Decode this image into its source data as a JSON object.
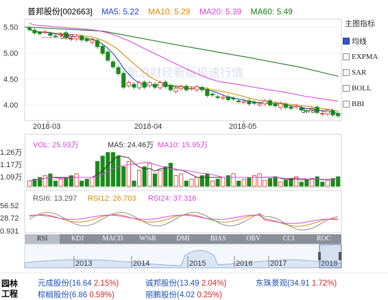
{
  "header": {
    "stock": "普邦股份[002663]",
    "ma5": "MA5: 5.22",
    "ma10": "MA10: 5.29",
    "ma20": "MA20: 5.39",
    "ma60": "MA60: 5.49"
  },
  "price_axis": [
    "5.50",
    "5.00",
    "4.50",
    "4.00"
  ],
  "date_axis": [
    "2018-03",
    "2018-04",
    "2018-05"
  ],
  "annotations": {
    "high": "5.42",
    "low": "3.78"
  },
  "watermark": "新浪财经新版极速行情",
  "volume": {
    "vol": "VOL: 25.93万",
    "ma5": "MA5: 24.46万",
    "ma10": "MA10: 15.95万",
    "axis": [
      "1.26万",
      "1.17万",
      "1.09万"
    ]
  },
  "rsi": {
    "rsi6": "RSI6: 13.297",
    "rsi12": "RSI12: 26.703",
    "rsi24": "RSI24: 37.316",
    "axis": [
      "56.52",
      "28.72",
      "0.931"
    ]
  },
  "tabs": [
    "RSI",
    "KDJ",
    "MACD",
    "W%R",
    "DMI",
    "BIAS",
    "OBV",
    "CCI",
    "ROC"
  ],
  "timeline_years": [
    "2013",
    "2014",
    "2015",
    "2016",
    "2017",
    "2018"
  ],
  "side_panel": {
    "title": "主图指标",
    "items": [
      {
        "label": "均线",
        "checked": true
      },
      {
        "label": "EXPMA",
        "checked": false
      },
      {
        "label": "SAR",
        "checked": false
      },
      {
        "label": "BOLL",
        "checked": false
      },
      {
        "label": "BBI",
        "checked": false
      }
    ]
  },
  "related": {
    "label": "园林工程",
    "stocks": [
      {
        "name": "元成股份",
        "price": "(16.64",
        "pct": "2.15%)"
      },
      {
        "name": "诚邦股份",
        "price": "(13.49",
        "pct": "2.04%)"
      },
      {
        "name": "东珠景观",
        "price": "(34.91",
        "pct": "1.72%)"
      },
      {
        "name": "棕榈股份",
        "price": "(6.86",
        "pct": "0.59%)"
      },
      {
        "name": "丽鹏股份",
        "price": "(4.02",
        "pct": "0.25%)"
      }
    ]
  },
  "colors": {
    "ma5": "#1a3fd6",
    "ma10": "#d98a00",
    "ma20": "#e040e0",
    "ma60": "#1a7a1a",
    "up": "#e02020",
    "down": "#1a8a1a"
  }
}
